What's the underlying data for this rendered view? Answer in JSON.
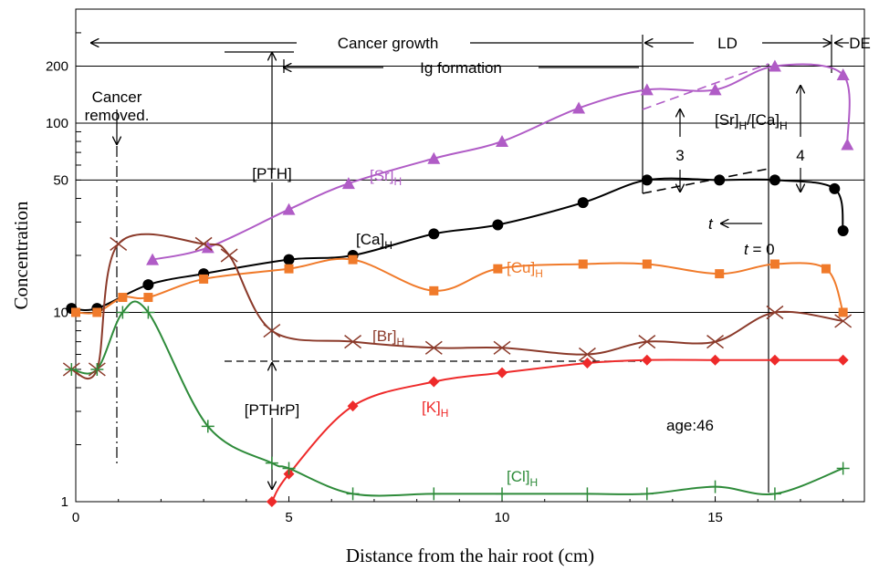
{
  "chart_data": {
    "type": "line",
    "title": "",
    "xlabel": "Distance from the hair root (cm)",
    "ylabel": "Concentration",
    "xlim": [
      0,
      18.5
    ],
    "ylim": [
      1,
      400
    ],
    "y_scale": "log",
    "x_ticks": [
      "0",
      "5",
      "10",
      "15"
    ],
    "y_ticks": [
      "1",
      "10",
      "50",
      "100",
      "200"
    ],
    "series": [
      {
        "name": "[Sr]H",
        "label_main": "[Sr]",
        "label_sub": "H",
        "color": "#b05cc6",
        "marker": "triangle",
        "x": [
          1.8,
          3.1,
          5.0,
          6.4,
          8.4,
          10.0,
          11.8,
          13.4,
          15.0,
          16.4,
          18.0,
          18.1
        ],
        "values": [
          19,
          22,
          35,
          48,
          65,
          80,
          120,
          150,
          150,
          200,
          180,
          77
        ]
      },
      {
        "name": "[Ca]H",
        "label_main": "[Ca]",
        "label_sub": "H",
        "color": "#000000",
        "marker": "circle",
        "x": [
          -0.1,
          0.5,
          1.7,
          3.0,
          5.0,
          6.5,
          8.4,
          9.9,
          11.9,
          13.4,
          15.1,
          16.4,
          17.8,
          18.0
        ],
        "values": [
          10.5,
          10.5,
          14,
          16,
          19,
          20,
          26,
          29,
          38,
          50,
          50,
          50,
          45,
          27
        ]
      },
      {
        "name": "[Cu]H",
        "label_main": "[Cu]",
        "label_sub": "H",
        "color": "#f07a2a",
        "marker": "square",
        "x": [
          0,
          0.5,
          1.1,
          1.7,
          3.0,
          5.0,
          6.5,
          8.4,
          9.9,
          11.9,
          13.4,
          15.1,
          16.4,
          17.6,
          18.0
        ],
        "values": [
          10,
          10,
          12,
          12,
          15,
          17,
          19,
          13,
          17,
          18,
          18,
          16,
          18,
          17,
          10
        ]
      },
      {
        "name": "[Br]H",
        "label_main": "[Br]",
        "label_sub": "H",
        "color": "#8b3a2a",
        "marker": "x",
        "x": [
          -0.1,
          0.5,
          1.0,
          3.0,
          3.6,
          4.6,
          6.5,
          8.4,
          10.0,
          12.0,
          13.4,
          15.0,
          16.4,
          18.0
        ],
        "values": [
          5,
          5,
          23,
          23,
          20,
          8,
          7,
          6.5,
          6.5,
          6,
          7,
          7,
          10,
          9
        ]
      },
      {
        "name": "[K]H",
        "label_main": "[K]",
        "label_sub": "H",
        "color": "#ee2a2a",
        "marker": "diamond",
        "x": [
          4.6,
          5.0,
          6.5,
          8.4,
          10.0,
          12.0,
          13.4,
          15.0,
          16.4,
          18.0
        ],
        "values": [
          1.0,
          1.4,
          3.2,
          4.3,
          4.8,
          5.4,
          5.6,
          5.6,
          5.6,
          5.6
        ]
      },
      {
        "name": "[Cl]H",
        "label_main": "[Cl]",
        "label_sub": "H",
        "color": "#2e8b3a",
        "marker": "plus",
        "x": [
          -0.1,
          0.5,
          1.1,
          1.7,
          3.1,
          4.6,
          5.0,
          6.5,
          8.4,
          10.0,
          12.0,
          13.4,
          15.0,
          16.4,
          18.0
        ],
        "values": [
          5,
          5,
          10,
          10,
          2.5,
          1.6,
          1.5,
          1.1,
          1.1,
          1.1,
          1.1,
          1.1,
          1.2,
          1.1,
          1.5
        ]
      }
    ],
    "annotations": {
      "cancer_growth": "Cancer growth",
      "ld": "LD",
      "de": "DE",
      "ig_formation": "Ig formation",
      "cancer_removed_1": "Cancer",
      "cancer_removed_2": "removed.",
      "pth": "[PTH]",
      "pthrp": "[PTHrP]",
      "ratio_main1": "[Sr]",
      "ratio_sub1": "H",
      "ratio_mid": "/[Ca]",
      "ratio_sub2": "H",
      "three": "3",
      "four": "4",
      "t_var": "t",
      "t_zero_var": "t",
      "t_zero_eq": " = 0",
      "age": "age:46"
    }
  }
}
